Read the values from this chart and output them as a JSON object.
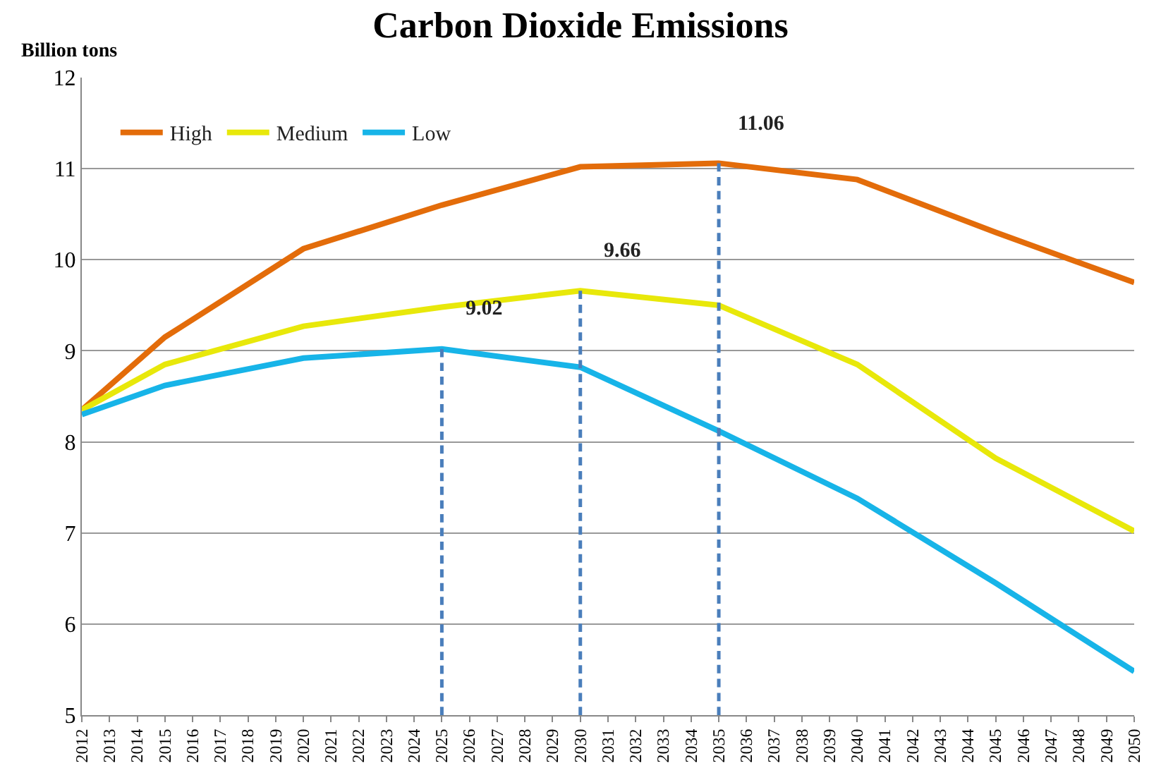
{
  "chart_data": {
    "type": "line",
    "title": "Carbon Dioxide Emissions",
    "ylabel": "Billion tons",
    "x": [
      2012,
      2015,
      2020,
      2025,
      2030,
      2035,
      2040,
      2045,
      2050
    ],
    "xlim": [
      2012,
      2050
    ],
    "xticks": [
      2012,
      2013,
      2014,
      2015,
      2016,
      2017,
      2018,
      2019,
      2020,
      2021,
      2022,
      2023,
      2024,
      2025,
      2026,
      2027,
      2028,
      2029,
      2030,
      2031,
      2032,
      2033,
      2034,
      2035,
      2036,
      2037,
      2038,
      2039,
      2040,
      2041,
      2042,
      2043,
      2044,
      2045,
      2046,
      2047,
      2048,
      2049,
      2050
    ],
    "ylim": [
      5,
      12
    ],
    "yticks": [
      5,
      6,
      7,
      8,
      9,
      10,
      11,
      12
    ],
    "grid": "y",
    "legend": "top left",
    "marker": "none",
    "line_style": "solid",
    "series": [
      {
        "name": "High",
        "color": "#e36c0a",
        "values": [
          8.35,
          9.15,
          10.12,
          10.6,
          11.02,
          11.06,
          10.88,
          10.3,
          9.75
        ]
      },
      {
        "name": "Medium",
        "color": "#e8e80a",
        "values": [
          8.35,
          8.85,
          9.27,
          9.48,
          9.66,
          9.5,
          8.85,
          7.82,
          7.02
        ]
      },
      {
        "name": "Low",
        "color": "#17b4e8",
        "values": [
          8.3,
          8.62,
          8.92,
          9.02,
          8.82,
          8.12,
          7.38,
          6.45,
          5.48
        ]
      },
      {
        "x": [
          2025,
          2025
        ],
        "color": "#4a7ebb",
        "line_style": "dashed",
        "values": [
          5,
          9.02
        ]
      },
      {
        "x": [
          2030,
          2030
        ],
        "color": "#4a7ebb",
        "line_style": "dashed",
        "values": [
          5,
          9.66
        ]
      },
      {
        "x": [
          2035,
          2035
        ],
        "color": "#4a7ebb",
        "line_style": "dashed",
        "values": [
          5,
          11.06
        ]
      }
    ],
    "annotations": [
      {
        "text": "9.02",
        "x": 2025,
        "y": 9.02
      },
      {
        "text": "9.66",
        "x": 2030,
        "y": 9.66
      },
      {
        "text": "11.06",
        "x": 2035,
        "y": 11.06
      }
    ]
  }
}
